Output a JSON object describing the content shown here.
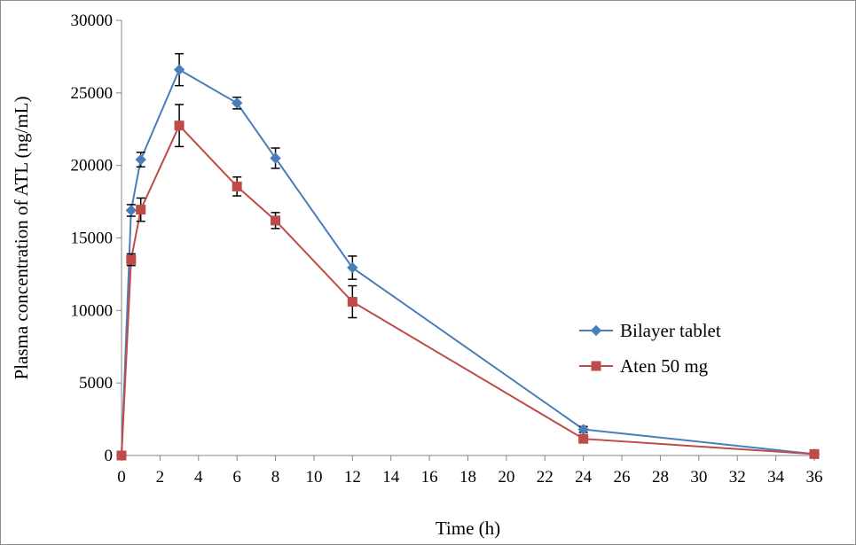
{
  "chart_data": {
    "type": "line",
    "title": "",
    "xlabel": "Time (h)",
    "ylabel": "Plasma concentration of ATL  (ng/mL)",
    "xlim": [
      0,
      36
    ],
    "ylim": [
      0,
      30000
    ],
    "x_ticks": [
      0,
      2,
      4,
      6,
      8,
      10,
      12,
      14,
      16,
      18,
      20,
      22,
      24,
      26,
      28,
      30,
      32,
      34,
      36
    ],
    "y_ticks": [
      0,
      5000,
      10000,
      15000,
      20000,
      25000,
      30000
    ],
    "grid": false,
    "legend_position": "right",
    "series": [
      {
        "name": "Bilayer tablet",
        "color": "#4A7EBB",
        "marker": "diamond",
        "x": [
          0,
          0.5,
          1,
          3,
          6,
          8,
          12,
          24,
          36
        ],
        "y": [
          0,
          16900,
          20400,
          26600,
          24300,
          20500,
          12950,
          1800,
          100
        ],
        "error": [
          0,
          400,
          500,
          1100,
          400,
          700,
          800,
          200,
          0
        ]
      },
      {
        "name": "Aten 50 mg",
        "color": "#BE4B48",
        "marker": "square",
        "x": [
          0,
          0.5,
          1,
          3,
          6,
          8,
          12,
          24,
          36
        ],
        "y": [
          0,
          13500,
          16950,
          22750,
          18550,
          16200,
          10600,
          1150,
          100
        ],
        "error": [
          0,
          400,
          800,
          1450,
          650,
          550,
          1100,
          150,
          0
        ]
      }
    ]
  }
}
